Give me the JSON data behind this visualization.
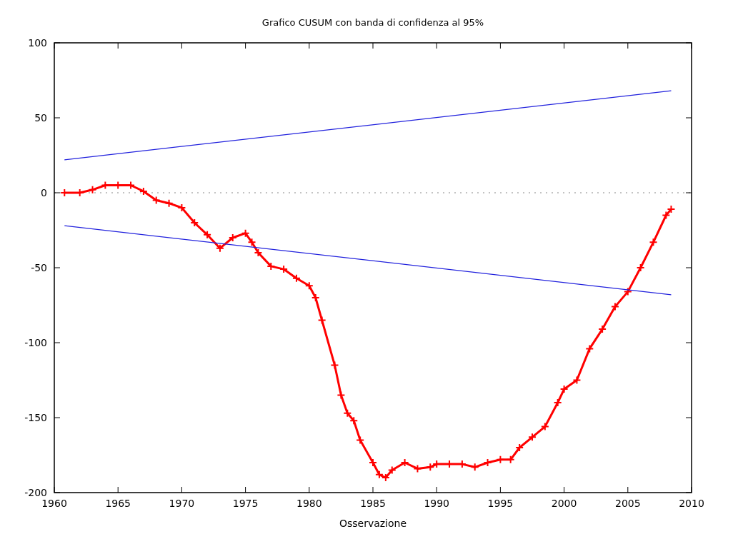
{
  "chart_data": {
    "type": "line",
    "title": "Grafico CUSUM con banda di confidenza al 95%",
    "xlabel": "Osservazione",
    "xlim": [
      1960,
      2010
    ],
    "xticks": [
      1960,
      1965,
      1970,
      1975,
      1980,
      1985,
      1990,
      1995,
      2000,
      2005,
      2010
    ],
    "ylim": [
      -200,
      100
    ],
    "yticks": [
      -200,
      -150,
      -100,
      -50,
      0,
      50,
      100
    ],
    "grid": false,
    "ref_lines": [
      {
        "axis": "y",
        "value": 0,
        "color": "#888888",
        "line_style": "dotted"
      }
    ],
    "series": [
      {
        "color": "#ff0000",
        "marker": "cross",
        "line_style": "solid",
        "x": [
          1960.8,
          1962,
          1963,
          1964,
          1965,
          1966,
          1967,
          1968,
          1969,
          1970,
          1971,
          1972,
          1973,
          1974,
          1975,
          1975.5,
          1976,
          1977,
          1978,
          1979,
          1980,
          1980.5,
          1981,
          1982,
          1982.5,
          1983,
          1983.5,
          1984,
          1985,
          1985.5,
          1986,
          1986.5,
          1987.5,
          1988.5,
          1989.5,
          1990,
          1991,
          1992,
          1993,
          1994,
          1995,
          1995.8,
          1996.5,
          1997.5,
          1998.5,
          1999.5,
          2000,
          2001,
          2002,
          2003,
          2004,
          2005,
          2006,
          2007,
          2008,
          2008.4
        ],
        "values": [
          0,
          0,
          2,
          5,
          5,
          5,
          1,
          -5,
          -7,
          -10,
          -20,
          -28,
          -37,
          -30,
          -27,
          -33,
          -40,
          -49,
          -51,
          -57,
          -62,
          -70,
          -85,
          -115,
          -135,
          -147,
          -152,
          -165,
          -180,
          -188,
          -190,
          -185,
          -180,
          -184,
          -183,
          -181,
          -181,
          -181,
          -183,
          -180,
          -178,
          -178,
          -170,
          -163,
          -156,
          -140,
          -131,
          -125,
          -104,
          -91,
          -76,
          -66,
          -50,
          -33,
          -15,
          -11
        ]
      },
      {
        "color": "#2222dd",
        "marker": "none",
        "line_style": "solid",
        "x": [
          1960.8,
          2008.4
        ],
        "values": [
          22,
          68
        ]
      },
      {
        "color": "#2222dd",
        "marker": "none",
        "line_style": "solid",
        "x": [
          1960.8,
          2008.4
        ],
        "values": [
          -22,
          -68
        ]
      }
    ]
  }
}
